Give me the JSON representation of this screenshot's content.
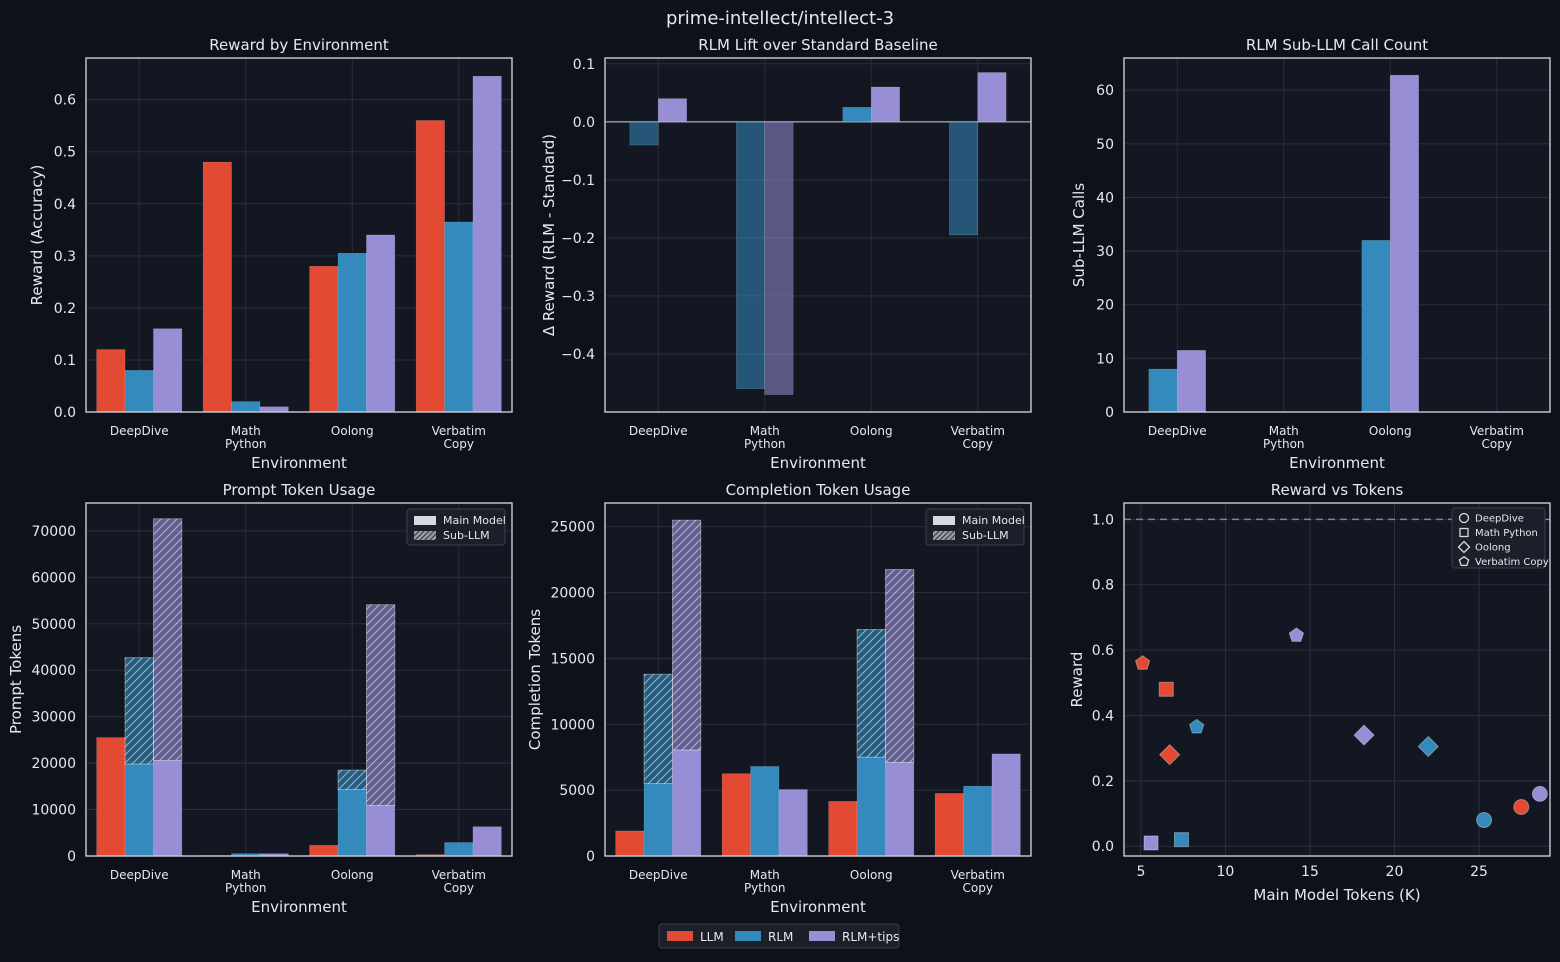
{
  "page_title": "prime-intellect/intellect-3",
  "colors": {
    "background": "#0e111a",
    "plot_bg": "#131722",
    "grid": "#2a2f3c",
    "spine": "#c8ccd4",
    "text": "#e6e8ee",
    "llm": "#e24a33",
    "rlm": "#348abd",
    "rlm_tips": "#988ed5",
    "hatch": "#ffffff",
    "ref_line": "#7f8591"
  },
  "categories": [
    "DeepDive",
    "Math\nPython",
    "Oolong",
    "Verbatim\nCopy"
  ],
  "legend_main": [
    {
      "key": "llm",
      "label": "LLM"
    },
    {
      "key": "rlm",
      "label": "RLM"
    },
    {
      "key": "rlm_tips",
      "label": "RLM+tips"
    }
  ],
  "chart_data": [
    {
      "id": "reward",
      "type": "bar",
      "title": "Reward by Environment",
      "xlabel": "Environment",
      "ylabel": "Reward (Accuracy)",
      "ylim": [
        0,
        0.68
      ],
      "yticks": [
        0.0,
        0.1,
        0.2,
        0.3,
        0.4,
        0.5,
        0.6
      ],
      "tick_format": "1",
      "series": [
        {
          "name": "LLM",
          "key": "llm",
          "values": [
            0.12,
            0.48,
            0.28,
            0.56
          ]
        },
        {
          "name": "RLM",
          "key": "rlm",
          "values": [
            0.08,
            0.02,
            0.305,
            0.365
          ]
        },
        {
          "name": "RLM+tips",
          "key": "rlm_tips",
          "values": [
            0.16,
            0.01,
            0.34,
            0.645
          ]
        }
      ]
    },
    {
      "id": "lift",
      "type": "bar",
      "title": "RLM Lift over Standard Baseline",
      "xlabel": "Environment",
      "ylabel": "Δ Reward (RLM - Standard)",
      "ylim": [
        -0.5,
        0.11
      ],
      "yticks": [
        0.1,
        0.0,
        -0.1,
        -0.2,
        -0.3,
        -0.4
      ],
      "tick_format": "1",
      "zero_line": true,
      "neg_alpha": 0.55,
      "series": [
        {
          "name": "RLM",
          "key": "rlm",
          "values": [
            -0.04,
            -0.46,
            0.025,
            -0.195
          ]
        },
        {
          "name": "RLM+tips",
          "key": "rlm_tips",
          "values": [
            0.04,
            -0.47,
            0.06,
            0.085
          ]
        }
      ]
    },
    {
      "id": "subllm",
      "type": "bar",
      "title": "RLM Sub-LLM Call Count",
      "xlabel": "Environment",
      "ylabel": "Sub-LLM Calls",
      "ylim": [
        0,
        66
      ],
      "yticks": [
        0,
        10,
        20,
        30,
        40,
        50,
        60
      ],
      "tick_format": "0",
      "series": [
        {
          "name": "RLM",
          "key": "rlm",
          "values": [
            8,
            0,
            32,
            0
          ]
        },
        {
          "name": "RLM+tips",
          "key": "rlm_tips",
          "values": [
            11.5,
            0,
            62.8,
            0
          ]
        }
      ]
    },
    {
      "id": "prompt",
      "type": "stacked_bar",
      "title": "Prompt Token Usage",
      "xlabel": "Environment",
      "ylabel": "Prompt Tokens",
      "ylim": [
        0,
        76000
      ],
      "yticks": [
        0,
        10000,
        20000,
        30000,
        40000,
        50000,
        60000,
        70000
      ],
      "tick_format": "0",
      "legend": [
        "Main Model",
        "Sub-LLM"
      ],
      "series": [
        {
          "name": "LLM",
          "key": "llm",
          "main": [
            25500,
            100,
            2300,
            300
          ],
          "sub": [
            0,
            0,
            0,
            0
          ]
        },
        {
          "name": "RLM",
          "key": "rlm",
          "main": [
            19800,
            500,
            14300,
            2900
          ],
          "sub": [
            22900,
            0,
            4200,
            0
          ]
        },
        {
          "name": "RLM+tips",
          "key": "rlm_tips",
          "main": [
            20600,
            500,
            10900,
            6300
          ],
          "sub": [
            52000,
            0,
            43200,
            0
          ]
        }
      ]
    },
    {
      "id": "completion",
      "type": "stacked_bar",
      "title": "Completion Token Usage",
      "xlabel": "Environment",
      "ylabel": "Completion Tokens",
      "ylim": [
        0,
        26800
      ],
      "yticks": [
        0,
        5000,
        10000,
        15000,
        20000,
        25000
      ],
      "tick_format": "0",
      "legend": [
        "Main Model",
        "Sub-LLM"
      ],
      "series": [
        {
          "name": "LLM",
          "key": "llm",
          "main": [
            1900,
            6250,
            4150,
            4750
          ],
          "sub": [
            0,
            0,
            0,
            0
          ]
        },
        {
          "name": "RLM",
          "key": "rlm",
          "main": [
            5500,
            6800,
            7500,
            5300
          ],
          "sub": [
            8300,
            0,
            9700,
            0
          ]
        },
        {
          "name": "RLM+tips",
          "key": "rlm_tips",
          "main": [
            8050,
            5050,
            7100,
            7750
          ],
          "sub": [
            17450,
            0,
            14650,
            0
          ]
        }
      ]
    },
    {
      "id": "scatter",
      "type": "scatter",
      "title": "Reward vs Tokens",
      "xlabel": "Main Model Tokens (K)",
      "ylabel": "Reward",
      "xlim": [
        4.0,
        29.2
      ],
      "ylim": [
        -0.03,
        1.05
      ],
      "xticks": [
        5,
        10,
        15,
        20,
        25
      ],
      "yticks": [
        0.0,
        0.2,
        0.4,
        0.6,
        0.8,
        1.0
      ],
      "tick_format": "1",
      "ref_y": 1.0,
      "legend": [
        {
          "marker": "circle",
          "label": "DeepDive"
        },
        {
          "marker": "square",
          "label": "Math Python"
        },
        {
          "marker": "diamond",
          "label": "Oolong"
        },
        {
          "marker": "pentagon",
          "label": "Verbatim Copy"
        }
      ],
      "points": [
        {
          "x": 27.5,
          "y": 0.12,
          "key": "llm",
          "marker": "circle"
        },
        {
          "x": 25.3,
          "y": 0.08,
          "key": "rlm",
          "marker": "circle"
        },
        {
          "x": 28.6,
          "y": 0.16,
          "key": "rlm_tips",
          "marker": "circle"
        },
        {
          "x": 6.5,
          "y": 0.48,
          "key": "llm",
          "marker": "square"
        },
        {
          "x": 7.4,
          "y": 0.02,
          "key": "rlm",
          "marker": "square"
        },
        {
          "x": 5.6,
          "y": 0.01,
          "key": "rlm_tips",
          "marker": "square"
        },
        {
          "x": 6.7,
          "y": 0.28,
          "key": "llm",
          "marker": "diamond"
        },
        {
          "x": 22.0,
          "y": 0.305,
          "key": "rlm",
          "marker": "diamond"
        },
        {
          "x": 18.2,
          "y": 0.34,
          "key": "rlm_tips",
          "marker": "diamond"
        },
        {
          "x": 5.1,
          "y": 0.56,
          "key": "llm",
          "marker": "pentagon"
        },
        {
          "x": 8.3,
          "y": 0.365,
          "key": "rlm",
          "marker": "pentagon"
        },
        {
          "x": 14.2,
          "y": 0.645,
          "key": "rlm_tips",
          "marker": "pentagon"
        }
      ]
    }
  ]
}
